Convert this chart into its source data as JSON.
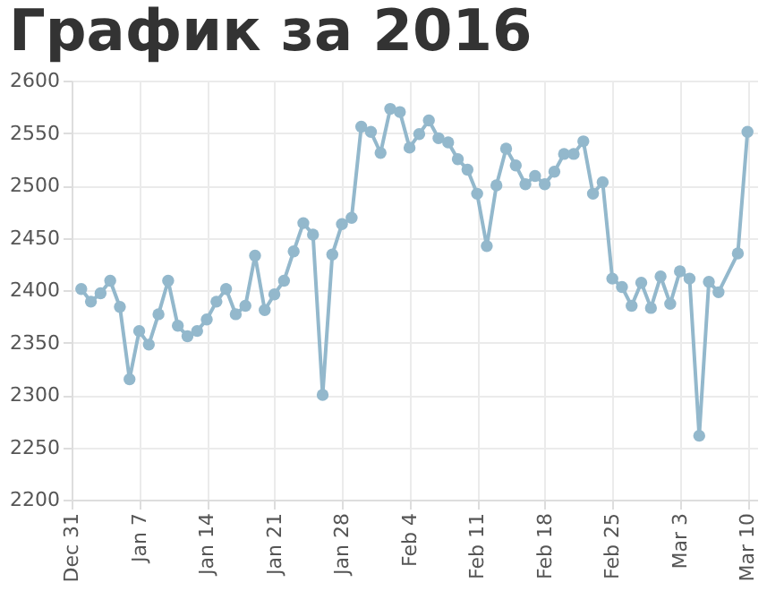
{
  "chart_data": {
    "type": "line",
    "title": "График за 2016",
    "x": [
      "2016-01-01",
      "2016-01-02",
      "2016-01-03",
      "2016-01-04",
      "2016-01-05",
      "2016-01-06",
      "2016-01-07",
      "2016-01-08",
      "2016-01-09",
      "2016-01-10",
      "2016-01-11",
      "2016-01-12",
      "2016-01-13",
      "2016-01-14",
      "2016-01-15",
      "2016-01-16",
      "2016-01-17",
      "2016-01-18",
      "2016-01-19",
      "2016-01-20",
      "2016-01-21",
      "2016-01-22",
      "2016-01-23",
      "2016-01-24",
      "2016-01-25",
      "2016-01-26",
      "2016-01-27",
      "2016-01-28",
      "2016-01-29",
      "2016-01-30",
      "2016-01-31",
      "2016-02-01",
      "2016-02-02",
      "2016-02-03",
      "2016-02-04",
      "2016-02-05",
      "2016-02-06",
      "2016-02-07",
      "2016-02-08",
      "2016-02-09",
      "2016-02-10",
      "2016-02-11",
      "2016-02-12",
      "2016-02-13",
      "2016-02-14",
      "2016-02-15",
      "2016-02-16",
      "2016-02-17",
      "2016-02-18",
      "2016-02-19",
      "2016-02-20",
      "2016-02-21",
      "2016-02-22",
      "2016-02-23",
      "2016-02-24",
      "2016-02-25",
      "2016-02-26",
      "2016-02-27",
      "2016-02-28",
      "2016-02-29",
      "2016-03-01",
      "2016-03-02",
      "2016-03-03",
      "2016-03-04",
      "2016-03-05",
      "2016-03-06",
      "2016-03-07",
      "2016-03-09",
      "2016-03-10"
    ],
    "series": [
      {
        "color": "#93b8cc",
        "values": [
          2401,
          2389,
          2397,
          2409,
          2384,
          2315,
          2361,
          2348,
          2377,
          2409,
          2366,
          2356,
          2361,
          2372,
          2389,
          2401,
          2377,
          2385,
          2433,
          2381,
          2396,
          2409,
          2437,
          2464,
          2453,
          2300,
          2434,
          2463,
          2469,
          2556,
          2551,
          2531,
          2573,
          2570,
          2536,
          2549,
          2562,
          2545,
          2541,
          2525,
          2515,
          2492,
          2442,
          2500,
          2535,
          2519,
          2501,
          2509,
          2501,
          2513,
          2530,
          2530,
          2542,
          2492,
          2503,
          2411,
          2403,
          2385,
          2407,
          2383,
          2413,
          2387,
          2418,
          2411,
          2261,
          2408,
          2398,
          2435,
          2551
        ]
      }
    ],
    "xlim": [
      "2015-12-31",
      "2016-03-11"
    ],
    "xticks": [
      {
        "value": "2015-12-31",
        "label": "Dec 31"
      },
      {
        "value": "2016-01-07",
        "label": "Jan 7"
      },
      {
        "value": "2016-01-14",
        "label": "Jan 14"
      },
      {
        "value": "2016-01-21",
        "label": "Jan 21"
      },
      {
        "value": "2016-01-28",
        "label": "Jan 28"
      },
      {
        "value": "2016-02-04",
        "label": "Feb 4"
      },
      {
        "value": "2016-02-11",
        "label": "Feb 11"
      },
      {
        "value": "2016-02-18",
        "label": "Feb 18"
      },
      {
        "value": "2016-02-25",
        "label": "Feb 25"
      },
      {
        "value": "2016-03-03",
        "label": "Mar 3"
      },
      {
        "value": "2016-03-10",
        "label": "Mar 10"
      }
    ],
    "ylim": [
      2200,
      2600
    ],
    "yticks": [
      2200,
      2250,
      2300,
      2350,
      2400,
      2450,
      2500,
      2550,
      2600
    ],
    "grid": true,
    "marker": "circle",
    "line_style": "solid"
  }
}
